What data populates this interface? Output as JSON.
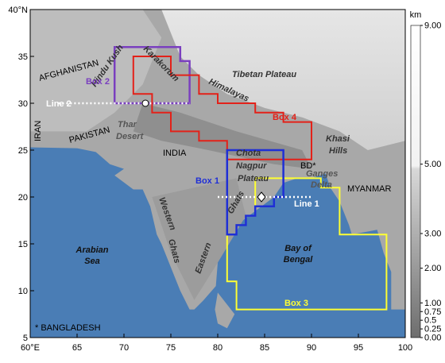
{
  "map": {
    "xlim": [
      60,
      100
    ],
    "ylim": [
      5,
      40
    ],
    "xticks": [
      {
        "value": 60,
        "label": "60°E"
      },
      65,
      70,
      75,
      80,
      85,
      90,
      95,
      100
    ],
    "yticks": [
      5,
      10,
      15,
      20,
      25,
      30,
      35,
      {
        "value": 40,
        "label": "40°N"
      }
    ],
    "colorbar": {
      "unit": "km",
      "lim": [
        0,
        9
      ],
      "ticks": [
        {
          "value": 0,
          "label": "0.00"
        },
        0.25,
        0.5,
        0.75,
        {
          "value": 1,
          "label": "1.00"
        },
        {
          "value": 2,
          "label": "2.00"
        },
        {
          "value": 3,
          "label": "3.00"
        },
        {
          "value": 5,
          "label": "5.00"
        },
        {
          "value": 9,
          "label": "9.00"
        }
      ]
    },
    "labels": {
      "afghanistan": "AFGHANISTAN",
      "hindu_kush": "Hindu Kush",
      "karakorum": "Karakorum",
      "box2": "Box 2",
      "line2": "Line 2",
      "iran": "IRAN",
      "pakistan": "PAKISTAN",
      "thar_desert": [
        "Thar",
        "Desert"
      ],
      "tibetan_plateau": "Tibetan Plateau",
      "himalayas": "Himalayas",
      "box4": "Box 4",
      "india": "INDIA",
      "chota_nagpur": [
        "Chota",
        "Nagpur",
        "Plateau"
      ],
      "khasi_hills": [
        "Khasi",
        "Hills"
      ],
      "bd": "BD*",
      "ganges_delta": [
        "Ganges",
        "Delta"
      ],
      "myanmar": "MYANMAR",
      "box1": "Box 1",
      "line1": "Line 1",
      "ghats": "Ghats",
      "western_ghats": [
        "Western",
        "Ghats"
      ],
      "eastern": "Eastern",
      "arabian_sea": [
        "Arabian",
        "Sea"
      ],
      "bay_of_bengal": [
        "Bay of",
        "Bengal"
      ],
      "box3": "Box 3"
    },
    "note": "* BANGLADESH"
  }
}
